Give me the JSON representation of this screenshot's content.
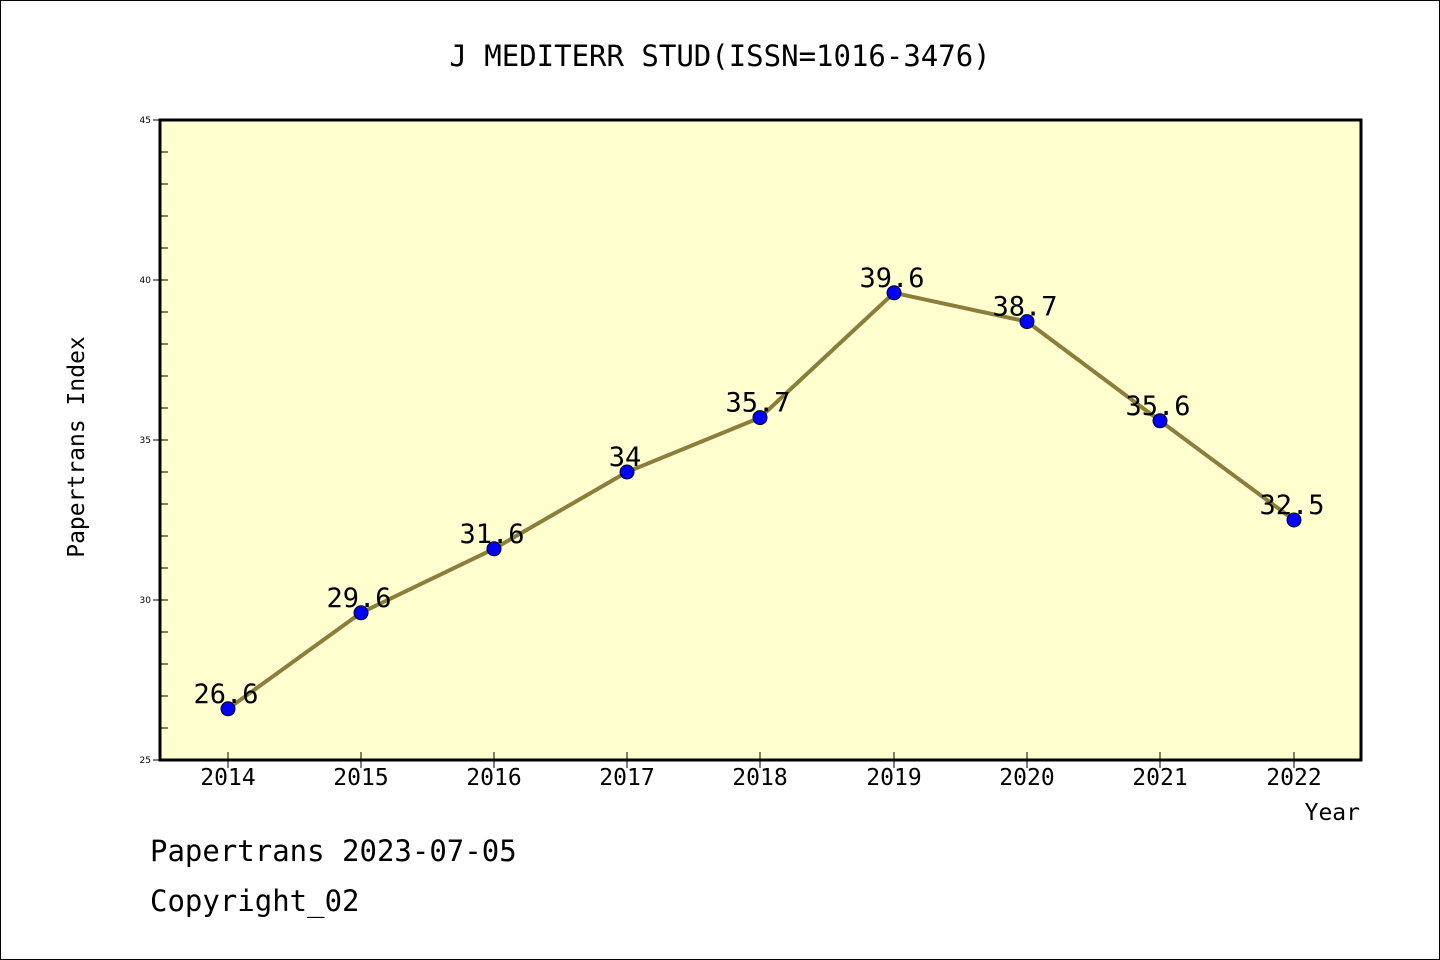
{
  "chart_data": {
    "type": "line",
    "title": "J MEDITERR STUD(ISSN=1016-3476)",
    "xlabel": "Year",
    "ylabel": "Papertrans Index",
    "x": [
      "2014",
      "2015",
      "2016",
      "2017",
      "2018",
      "2019",
      "2020",
      "2021",
      "2022"
    ],
    "series": [
      {
        "values": [
          26.6,
          29.6,
          31.6,
          34,
          35.7,
          39.6,
          38.7,
          35.6,
          32.5
        ],
        "labels": [
          "26.6",
          "29.6",
          "31.6",
          "34",
          "35.7",
          "39.6",
          "38.7",
          "35.6",
          "32.5"
        ]
      }
    ],
    "ylim": [
      25,
      45
    ],
    "yticks": [
      "25",
      "30",
      "35",
      "40",
      "45"
    ],
    "grid": false,
    "colors": {
      "plot_background": "#ffffd0",
      "line": "#8b7d3a",
      "marker": "#0000ff"
    }
  },
  "footer": {
    "date_text": "Papertrans 2023-07-05",
    "copyright_text": "Copyright_02"
  }
}
